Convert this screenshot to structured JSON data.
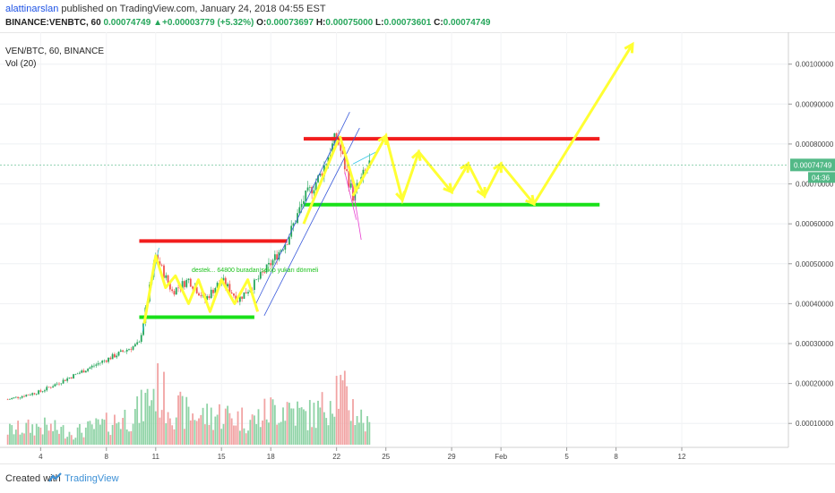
{
  "header": {
    "user": "alattinarslan",
    "published": " published on TradingView.com, January 24, 2018 04:55 EST",
    "symbol": "BINANCE:VENBTC, 60",
    "last": "0.00074749",
    "arrow": "▲",
    "change": "+0.00003779 (+5.32%)",
    "o_label": "O:",
    "o_value": "0.00073697",
    "h_label": "H:",
    "h_value": "0.00075000",
    "l_label": "L:",
    "l_value": "0.00073601",
    "c_label": "C:",
    "c_value": "0.00074749"
  },
  "chart_labels": {
    "pair": "VEN/BTC, 60, BINANCE",
    "vol": "Vol (20)",
    "annotation": "destek... 64800 buradan sekip yukarı dönmeli"
  },
  "footer": {
    "created": "Created with",
    "brand": "TradingView"
  },
  "colors": {
    "up": "#26a65b",
    "down": "#ef5350",
    "resistance": "#f21d1d",
    "support": "#19e019",
    "projection": "#ffff33",
    "channel": "#3b5bdb",
    "price_tag": "#53b987"
  },
  "chart_data": {
    "type": "candlestick",
    "x_tick_labels": [
      "4",
      "8",
      "11",
      "15",
      "18",
      "22",
      "25",
      "29",
      "Feb",
      "5",
      "8",
      "12"
    ],
    "y_tick_labels": [
      "0.00010000",
      "0.00020000",
      "0.00030000",
      "0.00040000",
      "0.00050000",
      "0.00060000",
      "0.00070000",
      "0.00080000",
      "0.00090000",
      "0.00100000"
    ],
    "ylim": [
      4e-05,
      0.00108
    ],
    "last_price_label": "0.00074749",
    "countdown_label": "04:36",
    "levels": [
      {
        "kind": "resistance",
        "price": 0.000557,
        "from": "10",
        "to": "19"
      },
      {
        "kind": "support",
        "price": 0.000366,
        "from": "10",
        "to": "17"
      },
      {
        "kind": "resistance",
        "price": 0.000813,
        "from": "20",
        "to": "Feb 7"
      },
      {
        "kind": "support",
        "price": 0.000648,
        "from": "20",
        "to": "Feb 7"
      }
    ],
    "price_path": [
      [
        "Jan 2",
        0.00016
      ],
      [
        "Jan 4",
        0.00018
      ],
      [
        "Jan 6",
        0.00022
      ],
      [
        "Jan 8",
        0.00026
      ],
      [
        "Jan 10",
        0.0003
      ],
      [
        "Jan 11",
        0.00052
      ],
      [
        "Jan 12",
        0.00043
      ],
      [
        "Jan 13",
        0.00046
      ],
      [
        "Jan 14",
        0.00041
      ],
      [
        "Jan 15",
        0.00046
      ],
      [
        "Jan 16",
        0.00041
      ],
      [
        "Jan 17",
        0.00045
      ],
      [
        "Jan 18",
        0.0005
      ],
      [
        "Jan 19",
        0.00056
      ],
      [
        "Jan 20",
        0.00066
      ],
      [
        "Jan 21",
        0.00072
      ],
      [
        "Jan 22",
        0.00082
      ],
      [
        "Jan 23",
        0.00067
      ],
      [
        "Jan 24",
        0.00075
      ]
    ],
    "volume_bars": [
      [
        "Jan 2",
        0.7
      ],
      [
        "Jan 4",
        0.9
      ],
      [
        "Jan 6",
        0.6
      ],
      [
        "Jan 8",
        1.0
      ],
      [
        "Jan 10",
        1.6
      ],
      [
        "Jan 11",
        2.8
      ],
      [
        "Jan 12",
        1.8
      ],
      [
        "Jan 13",
        1.5
      ],
      [
        "Jan 14",
        1.4
      ],
      [
        "Jan 15",
        1.5
      ],
      [
        "Jan 16",
        1.3
      ],
      [
        "Jan 17",
        1.2
      ],
      [
        "Jan 18",
        1.7
      ],
      [
        "Jan 19",
        1.9
      ],
      [
        "Jan 20",
        1.4
      ],
      [
        "Jan 21",
        1.6
      ],
      [
        "Jan 22",
        2.9
      ],
      [
        "Jan 23",
        1.8
      ],
      [
        "Jan 24",
        0.8
      ]
    ],
    "projection_path": [
      [
        "Jan 23",
        0.00067
      ],
      [
        "Jan 25",
        0.00082
      ],
      [
        "Jan 26",
        0.00066
      ],
      [
        "Jan 27",
        0.00078
      ],
      [
        "Jan 29",
        0.00068
      ],
      [
        "Jan 30",
        0.00075
      ],
      [
        "Jan 31",
        0.00067
      ],
      [
        "Feb 1",
        0.00075
      ],
      [
        "Feb 3",
        0.00065
      ],
      [
        "Feb 9",
        0.00105
      ]
    ]
  }
}
